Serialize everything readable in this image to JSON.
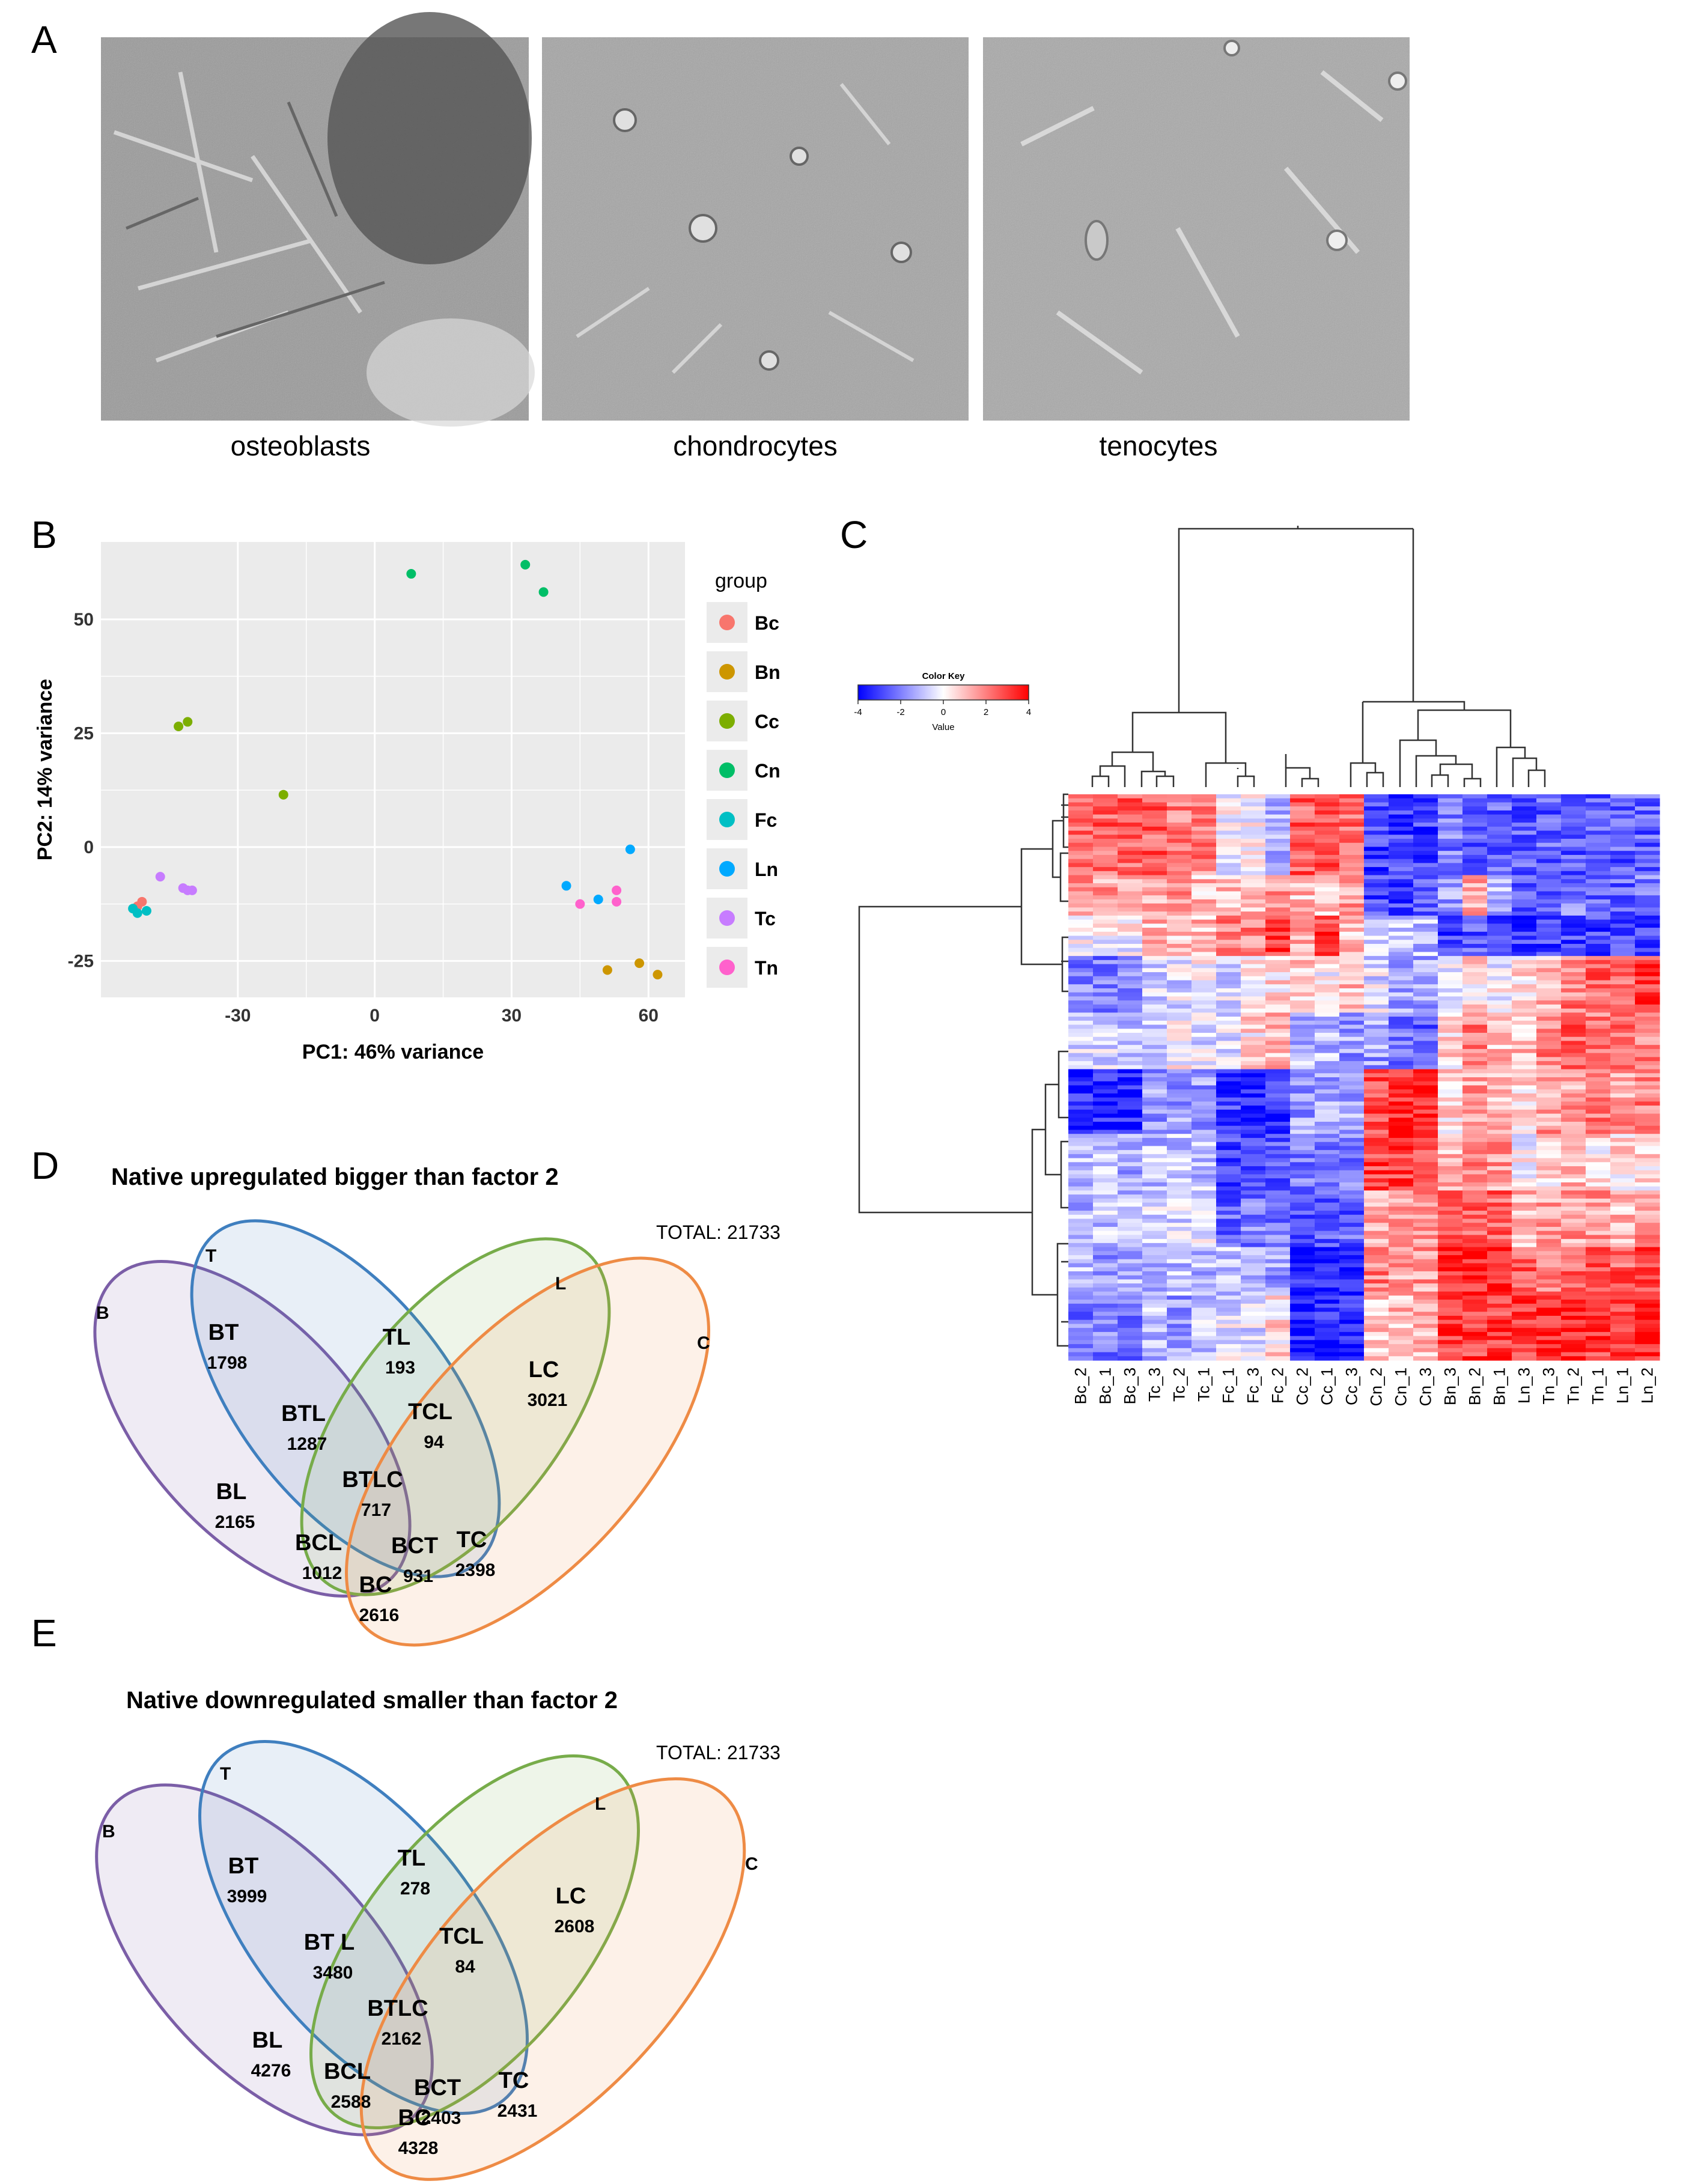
{
  "panels": {
    "A": "A",
    "B": "B",
    "C": "C",
    "D": "D",
    "E": "E"
  },
  "micrographs": [
    {
      "caption": "osteoblasts",
      "image": "DIC micrograph of osteoblasts"
    },
    {
      "caption": "chondrocytes",
      "image": "DIC micrograph of chondrocytes"
    },
    {
      "caption": "tenocytes",
      "image": "DIC micrograph of tenocytes"
    }
  ],
  "colors": {
    "Bc": "#F8766D",
    "Bn": "#CD9600",
    "Cc": "#7CAE00",
    "Cn": "#00BE67",
    "Fc": "#00BFC4",
    "Ln": "#00A9FF",
    "Tc": "#C77CFF",
    "Tn": "#FF61CC",
    "panel_bg": "#EBEBEB",
    "heat_low": "#0000FF",
    "heat_mid": "#FFFFFF",
    "heat_high": "#FF0000",
    "set_B": "#7B5EA7",
    "set_T": "#3F7FBF",
    "set_L": "#77AC4A",
    "set_C": "#EE8B45"
  },
  "chart_data": [
    {
      "type": "scatter",
      "xlabel": "PC1: 46% variance",
      "ylabel": "PC2: 14% variance",
      "xlim": [
        -60,
        68
      ],
      "ylim": [
        -33,
        67
      ],
      "xticks": [
        "-30",
        "0",
        "30",
        "60"
      ],
      "xtick_values": [
        -30,
        0,
        30,
        60
      ],
      "yticks": [
        "50",
        "25",
        "0",
        "-25"
      ],
      "ytick_values": [
        50,
        25,
        0,
        -25
      ],
      "legend_title": "group",
      "legend_position": "right",
      "series": [
        {
          "name": "Bc",
          "points": [
            [
              -51,
              -12
            ],
            [
              -52,
              -13
            ]
          ]
        },
        {
          "name": "Bn",
          "points": [
            [
              51,
              -27
            ],
            [
              58,
              -25.5
            ],
            [
              62,
              -28
            ]
          ]
        },
        {
          "name": "Cc",
          "points": [
            [
              -43,
              26.5
            ],
            [
              -41,
              27.5
            ],
            [
              -20,
              11.5
            ]
          ]
        },
        {
          "name": "Cn",
          "points": [
            [
              8,
              60
            ],
            [
              33,
              62
            ],
            [
              37,
              56
            ]
          ]
        },
        {
          "name": "Fc",
          "points": [
            [
              -52,
              -14.5
            ],
            [
              -53,
              -13.5
            ],
            [
              -50,
              -14
            ]
          ]
        },
        {
          "name": "Ln",
          "points": [
            [
              42,
              -8.5
            ],
            [
              49,
              -11.5
            ],
            [
              56,
              -0.5
            ]
          ]
        },
        {
          "name": "Tc",
          "points": [
            [
              -47,
              -6.5
            ],
            [
              -42,
              -9
            ],
            [
              -41,
              -9.5
            ],
            [
              -40,
              -9.5
            ]
          ]
        },
        {
          "name": "Tn",
          "points": [
            [
              45,
              -12.5
            ],
            [
              53,
              -12
            ],
            [
              53,
              -9.5
            ]
          ]
        }
      ]
    },
    {
      "type": "heatmap",
      "columns": [
        "Bc_2",
        "Bc_1",
        "Bc_3",
        "Tc_3",
        "Tc_2",
        "Tc_1",
        "Fc_1",
        "Fc_3",
        "Fc_2",
        "Cc_2",
        "Cc_1",
        "Cc_3",
        "Cn_2",
        "Cn_1",
        "Cn_3",
        "Bn_3",
        "Bn_2",
        "Bn_1",
        "Ln_3",
        "Tn_3",
        "Tn_2",
        "Tn_1",
        "Ln_1",
        "Ln_2"
      ],
      "color_key": {
        "title": "Color Key",
        "label": "Value",
        "ticks": [
          "-4",
          "-2",
          "0",
          "2",
          "4"
        ],
        "range": [
          -4,
          4
        ]
      },
      "blocks": [
        {
          "rows": 20,
          "values": [
            2.5,
            2.5,
            2.5,
            2.5,
            2,
            2,
            0,
            0,
            -1,
            2.5,
            3,
            2.5,
            -3,
            -3,
            -3,
            -2,
            -2.5,
            -2.5,
            -2.5,
            -2.5,
            -2.5,
            -2.5,
            -2.5,
            -2.5
          ]
        },
        {
          "rows": 10,
          "values": [
            1.5,
            1.5,
            1,
            1.5,
            1.5,
            1,
            1,
            1,
            1.5,
            1,
            1,
            1.5,
            -3,
            -3,
            -2.5,
            -1.5,
            1.5,
            -1,
            -2.5,
            -2.5,
            -2,
            -2.5,
            -2.5,
            -2
          ]
        },
        {
          "rows": 10,
          "values": [
            0,
            0,
            0,
            1,
            1,
            1,
            2,
            2,
            3,
            1.5,
            3,
            1,
            -1,
            -1,
            -1,
            -3,
            -2.5,
            -3,
            -3,
            -3,
            -3,
            -3,
            -3,
            -3
          ]
        },
        {
          "rows": 14,
          "values": [
            -2,
            -2,
            -1.5,
            -0.5,
            -0.5,
            0,
            -0.5,
            0.5,
            0.5,
            1,
            0,
            1,
            -0.5,
            -1.5,
            -1.5,
            -0.5,
            0.5,
            0,
            0.5,
            1,
            2,
            2.5,
            2.5,
            3
          ]
        },
        {
          "rows": 14,
          "values": [
            -0.5,
            -0.5,
            -1,
            -0.5,
            0,
            -0.5,
            -0.5,
            0.5,
            1,
            -1,
            -1,
            -1.5,
            -1.5,
            -2,
            -2.5,
            0.5,
            2,
            1,
            1,
            2,
            2.5,
            2,
            2.5,
            2
          ]
        },
        {
          "rows": 16,
          "values": [
            -3.5,
            -3.5,
            -3.5,
            -1.5,
            -1.5,
            -1.5,
            -3,
            -3.5,
            -3,
            -1.5,
            -1.5,
            -1.5,
            3,
            3.5,
            3.5,
            0.5,
            1.5,
            1,
            0.5,
            1.5,
            1.5,
            2,
            1.5,
            2
          ]
        },
        {
          "rows": 14,
          "values": [
            -1,
            -1,
            -1.5,
            -1,
            -1,
            -1,
            -3,
            -3,
            -2.5,
            -2,
            -2,
            -2,
            3,
            3,
            3,
            1,
            2,
            1.5,
            0,
            0.5,
            1,
            0.5,
            0.5,
            0.5
          ]
        },
        {
          "rows": 14,
          "values": [
            -1,
            -1,
            -1,
            -0.5,
            -0.5,
            -0.5,
            -2.5,
            -2,
            -2,
            -2.5,
            -2.5,
            -2.5,
            1.5,
            1.5,
            1.5,
            2.5,
            2.5,
            2.5,
            1,
            1.5,
            1.5,
            1.5,
            1,
            1.5
          ]
        },
        {
          "rows": 12,
          "values": [
            -1,
            -1.5,
            -1,
            -1,
            -1,
            -1,
            -1,
            -1,
            -1.5,
            -3.5,
            -3.5,
            -3.5,
            2,
            1.5,
            1.5,
            3.5,
            3.5,
            3.5,
            2.5,
            2,
            2.5,
            2.5,
            2.5,
            3
          ]
        },
        {
          "rows": 16,
          "values": [
            -2,
            -2,
            -2,
            -1,
            -1.5,
            -1,
            -0.5,
            -0.5,
            0.5,
            -3.5,
            -3.5,
            -3.5,
            1,
            1,
            1,
            3,
            3,
            3,
            3,
            3.5,
            3.5,
            3,
            3,
            3.5
          ]
        }
      ]
    },
    {
      "type": "venn",
      "title": "Native upregulated bigger than factor 2",
      "total": "TOTAL: 21733",
      "sets": [
        "B",
        "T",
        "L",
        "C"
      ],
      "regions": [
        {
          "label": "BT",
          "value": "1798"
        },
        {
          "label": "TL",
          "value": "193"
        },
        {
          "label": "LC",
          "value": "3021"
        },
        {
          "label": "BTL",
          "value": "1287"
        },
        {
          "label": "TCL",
          "value": "94"
        },
        {
          "label": "BL",
          "value": "2165"
        },
        {
          "label": "BTLC",
          "value": "717"
        },
        {
          "label": "BCL",
          "value": "1012"
        },
        {
          "label": "BCT",
          "value": "931"
        },
        {
          "label": "TC",
          "value": "2398"
        },
        {
          "label": "BC",
          "value": "2616"
        }
      ]
    },
    {
      "type": "venn",
      "title": "Native downregulated smaller than factor 2",
      "total": "TOTAL: 21733",
      "sets": [
        "B",
        "T",
        "L",
        "C"
      ],
      "regions": [
        {
          "label": "BT",
          "value": "3999"
        },
        {
          "label": "TL",
          "value": "278"
        },
        {
          "label": "LC",
          "value": "2608"
        },
        {
          "label": "BT L",
          "value": "3480"
        },
        {
          "label": "TCL",
          "value": "84"
        },
        {
          "label": "BL",
          "value": "4276"
        },
        {
          "label": "BTLC",
          "value": "2162"
        },
        {
          "label": "BCL",
          "value": "2588"
        },
        {
          "label": "BCT",
          "value": "2403"
        },
        {
          "label": "TC",
          "value": "2431"
        },
        {
          "label": "BC",
          "value": "4328"
        }
      ]
    }
  ]
}
